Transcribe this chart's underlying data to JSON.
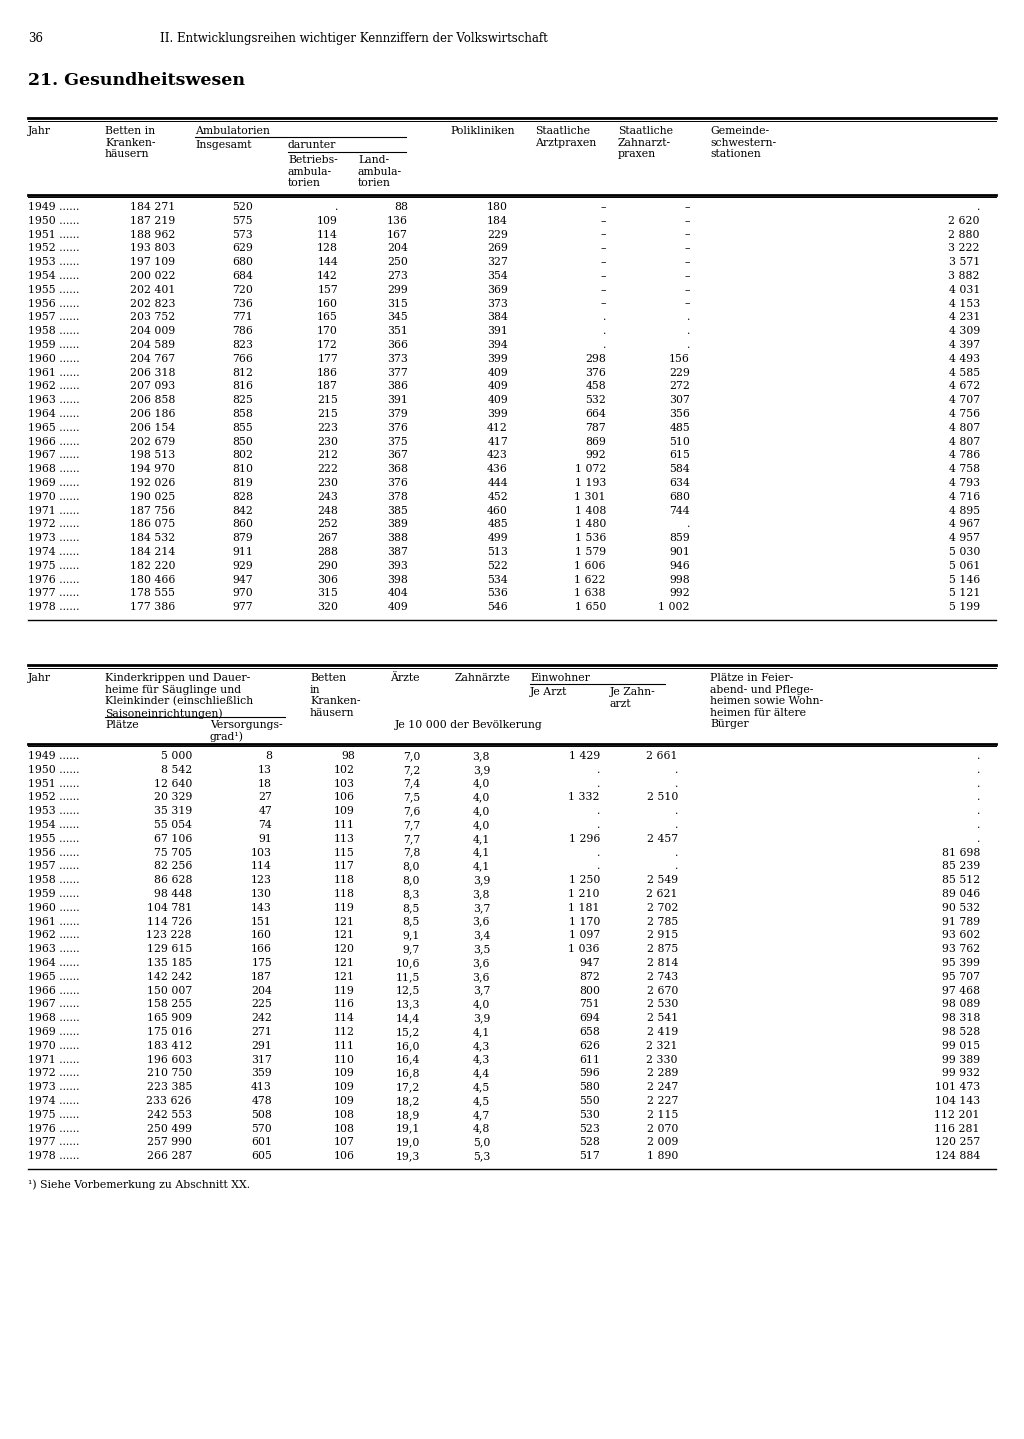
{
  "page_number": "36",
  "header": "II. Entwicklungsreihen wichtiger Kennziffern der Volkswirtschaft",
  "section_title": "21. Gesundheitswesen",
  "table1_rows": [
    [
      "1949 ......",
      "184 271",
      "520",
      ".",
      "88",
      "180",
      "–",
      "–",
      "."
    ],
    [
      "1950 ......",
      "187 219",
      "575",
      "109",
      "136",
      "184",
      "–",
      "–",
      "2 620"
    ],
    [
      "1951 ......",
      "188 962",
      "573",
      "114",
      "167",
      "229",
      "–",
      "–",
      "2 880"
    ],
    [
      "1952 ......",
      "193 803",
      "629",
      "128",
      "204",
      "269",
      "–",
      "–",
      "3 222"
    ],
    [
      "1953 ......",
      "197 109",
      "680",
      "144",
      "250",
      "327",
      "–",
      "–",
      "3 571"
    ],
    [
      "1954 ......",
      "200 022",
      "684",
      "142",
      "273",
      "354",
      "–",
      "–",
      "3 882"
    ],
    [
      "1955 ......",
      "202 401",
      "720",
      "157",
      "299",
      "369",
      "–",
      "–",
      "4 031"
    ],
    [
      "1956 ......",
      "202 823",
      "736",
      "160",
      "315",
      "373",
      "–",
      "–",
      "4 153"
    ],
    [
      "1957 ......",
      "203 752",
      "771",
      "165",
      "345",
      "384",
      ".",
      ".",
      "4 231"
    ],
    [
      "1958 ......",
      "204 009",
      "786",
      "170",
      "351",
      "391",
      ".",
      ".",
      "4 309"
    ],
    [
      "1959 ......",
      "204 589",
      "823",
      "172",
      "366",
      "394",
      ".",
      ".",
      "4 397"
    ],
    [
      "1960 ......",
      "204 767",
      "766",
      "177",
      "373",
      "399",
      "298",
      "156",
      "4 493"
    ],
    [
      "1961 ......",
      "206 318",
      "812",
      "186",
      "377",
      "409",
      "376",
      "229",
      "4 585"
    ],
    [
      "1962 ......",
      "207 093",
      "816",
      "187",
      "386",
      "409",
      "458",
      "272",
      "4 672"
    ],
    [
      "1963 ......",
      "206 858",
      "825",
      "215",
      "391",
      "409",
      "532",
      "307",
      "4 707"
    ],
    [
      "1964 ......",
      "206 186",
      "858",
      "215",
      "379",
      "399",
      "664",
      "356",
      "4 756"
    ],
    [
      "1965 ......",
      "206 154",
      "855",
      "223",
      "376",
      "412",
      "787",
      "485",
      "4 807"
    ],
    [
      "1966 ......",
      "202 679",
      "850",
      "230",
      "375",
      "417",
      "869",
      "510",
      "4 807"
    ],
    [
      "1967 ......",
      "198 513",
      "802",
      "212",
      "367",
      "423",
      "992",
      "615",
      "4 786"
    ],
    [
      "1968 ......",
      "194 970",
      "810",
      "222",
      "368",
      "436",
      "1 072",
      "584",
      "4 758"
    ],
    [
      "1969 ......",
      "192 026",
      "819",
      "230",
      "376",
      "444",
      "1 193",
      "634",
      "4 793"
    ],
    [
      "1970 ......",
      "190 025",
      "828",
      "243",
      "378",
      "452",
      "1 301",
      "680",
      "4 716"
    ],
    [
      "1971 ......",
      "187 756",
      "842",
      "248",
      "385",
      "460",
      "1 408",
      "744",
      "4 895"
    ],
    [
      "1972 ......",
      "186 075",
      "860",
      "252",
      "389",
      "485",
      "1 480",
      ".",
      "4 967"
    ],
    [
      "1973 ......",
      "184 532",
      "879",
      "267",
      "388",
      "499",
      "1 536",
      "859",
      "4 957"
    ],
    [
      "1974 ......",
      "184 214",
      "911",
      "288",
      "387",
      "513",
      "1 579",
      "901",
      "5 030"
    ],
    [
      "1975 ......",
      "182 220",
      "929",
      "290",
      "393",
      "522",
      "1 606",
      "946",
      "5 061"
    ],
    [
      "1976 ......",
      "180 466",
      "947",
      "306",
      "398",
      "534",
      "1 622",
      "998",
      "5 146"
    ],
    [
      "1977 ......",
      "178 555",
      "970",
      "315",
      "404",
      "536",
      "1 638",
      "992",
      "5 121"
    ],
    [
      "1978 ......",
      "177 386",
      "977",
      "320",
      "409",
      "546",
      "1 650",
      "1 002",
      "5 199"
    ]
  ],
  "table2_rows": [
    [
      "1949 ......",
      "5 000",
      "8",
      "98",
      "7,0",
      "3,8",
      "1 429",
      "2 661",
      "."
    ],
    [
      "1950 ......",
      "8 542",
      "13",
      "102",
      "7,2",
      "3,9",
      ".",
      ".",
      "."
    ],
    [
      "1951 ......",
      "12 640",
      "18",
      "103",
      "7,4",
      "4,0",
      ".",
      ".",
      "."
    ],
    [
      "1952 ......",
      "20 329",
      "27",
      "106",
      "7,5",
      "4,0",
      "1 332",
      "2 510",
      "."
    ],
    [
      "1953 ......",
      "35 319",
      "47",
      "109",
      "7,6",
      "4,0",
      ".",
      ".",
      "."
    ],
    [
      "1954 ......",
      "55 054",
      "74",
      "111",
      "7,7",
      "4,0",
      ".",
      ".",
      "."
    ],
    [
      "1955 ......",
      "67 106",
      "91",
      "113",
      "7,7",
      "4,1",
      "1 296",
      "2 457",
      "."
    ],
    [
      "1956 ......",
      "75 705",
      "103",
      "115",
      "7,8",
      "4,1",
      ".",
      ".",
      "81 698"
    ],
    [
      "1957 ......",
      "82 256",
      "114",
      "117",
      "8,0",
      "4,1",
      ".",
      ".",
      "85 239"
    ],
    [
      "1958 ......",
      "86 628",
      "123",
      "118",
      "8,0",
      "3,9",
      "1 250",
      "2 549",
      "85 512"
    ],
    [
      "1959 ......",
      "98 448",
      "130",
      "118",
      "8,3",
      "3,8",
      "1 210",
      "2 621",
      "89 046"
    ],
    [
      "1960 ......",
      "104 781",
      "143",
      "119",
      "8,5",
      "3,7",
      "1 181",
      "2 702",
      "90 532"
    ],
    [
      "1961 ......",
      "114 726",
      "151",
      "121",
      "8,5",
      "3,6",
      "1 170",
      "2 785",
      "91 789"
    ],
    [
      "1962 ......",
      "123 228",
      "160",
      "121",
      "9,1",
      "3,4",
      "1 097",
      "2 915",
      "93 602"
    ],
    [
      "1963 ......",
      "129 615",
      "166",
      "120",
      "9,7",
      "3,5",
      "1 036",
      "2 875",
      "93 762"
    ],
    [
      "1964 ......",
      "135 185",
      "175",
      "121",
      "10,6",
      "3,6",
      "947",
      "2 814",
      "95 399"
    ],
    [
      "1965 ......",
      "142 242",
      "187",
      "121",
      "11,5",
      "3,6",
      "872",
      "2 743",
      "95 707"
    ],
    [
      "1966 ......",
      "150 007",
      "204",
      "119",
      "12,5",
      "3,7",
      "800",
      "2 670",
      "97 468"
    ],
    [
      "1967 ......",
      "158 255",
      "225",
      "116",
      "13,3",
      "4,0",
      "751",
      "2 530",
      "98 089"
    ],
    [
      "1968 ......",
      "165 909",
      "242",
      "114",
      "14,4",
      "3,9",
      "694",
      "2 541",
      "98 318"
    ],
    [
      "1969 ......",
      "175 016",
      "271",
      "112",
      "15,2",
      "4,1",
      "658",
      "2 419",
      "98 528"
    ],
    [
      "1970 ......",
      "183 412",
      "291",
      "111",
      "16,0",
      "4,3",
      "626",
      "2 321",
      "99 015"
    ],
    [
      "1971 ......",
      "196 603",
      "317",
      "110",
      "16,4",
      "4,3",
      "611",
      "2 330",
      "99 389"
    ],
    [
      "1972 ......",
      "210 750",
      "359",
      "109",
      "16,8",
      "4,4",
      "596",
      "2 289",
      "99 932"
    ],
    [
      "1973 ......",
      "223 385",
      "413",
      "109",
      "17,2",
      "4,5",
      "580",
      "2 247",
      "101 473"
    ],
    [
      "1974 ......",
      "233 626",
      "478",
      "109",
      "18,2",
      "4,5",
      "550",
      "2 227",
      "104 143"
    ],
    [
      "1975 ......",
      "242 553",
      "508",
      "108",
      "18,9",
      "4,7",
      "530",
      "2 115",
      "112 201"
    ],
    [
      "1976 ......",
      "250 499",
      "570",
      "108",
      "19,1",
      "4,8",
      "523",
      "2 070",
      "116 281"
    ],
    [
      "1977 ......",
      "257 990",
      "601",
      "107",
      "19,0",
      "5,0",
      "528",
      "2 009",
      "120 257"
    ],
    [
      "1978 ......",
      "266 287",
      "605",
      "106",
      "19,3",
      "5,3",
      "517",
      "1 890",
      "124 884"
    ]
  ],
  "footnote": "¹) Siehe Vorbemerkung zu Abschnitt XX."
}
